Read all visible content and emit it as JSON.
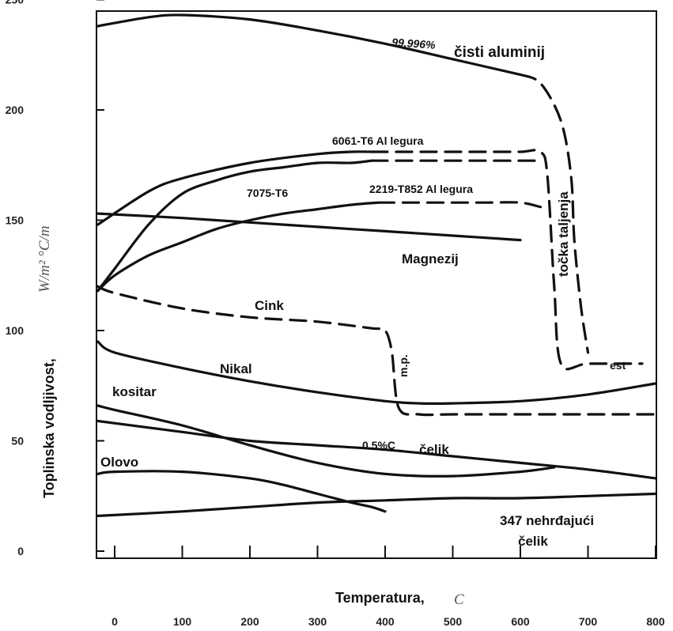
{
  "chart_data": {
    "type": "line",
    "xlabel": "Temperatura,",
    "xunit": "C",
    "ylabel": "Toplinska vodljivost,",
    "yunit": "W/m² °C/m",
    "xticks": [
      0,
      100,
      200,
      300,
      400,
      500,
      600,
      700,
      800
    ],
    "yticks": [
      0,
      50,
      100,
      150,
      200,
      250
    ],
    "xlim": [
      -25,
      810
    ],
    "ylim": [
      -5,
      255
    ],
    "grid": false,
    "series": [
      {
        "name": "99.996% čisti aluminij",
        "style": "solid",
        "x": [
          -25,
          50,
          100,
          200,
          300,
          400,
          500,
          600
        ],
        "y": [
          238,
          242,
          243,
          241,
          236,
          230,
          223,
          216
        ]
      },
      {
        "name": "99.996% čisti aluminij",
        "style": "dashed",
        "x": [
          600,
          630,
          660,
          675,
          680,
          690,
          700
        ],
        "y": [
          216,
          212,
          195,
          170,
          140,
          110,
          90
        ]
      },
      {
        "name": "6061-T6 Al legura",
        "style": "solid",
        "x": [
          -25,
          50,
          100,
          200,
          300,
          350,
          380
        ],
        "y": [
          148,
          163,
          169,
          176,
          180,
          181,
          181
        ]
      },
      {
        "name": "6061-T6 Al legura",
        "style": "dashed",
        "x": [
          380,
          450,
          500,
          550,
          600,
          630,
          640,
          650,
          660,
          700,
          780
        ],
        "y": [
          181,
          181,
          181,
          181,
          181,
          181,
          170,
          120,
          85,
          85,
          85
        ]
      },
      {
        "name": "7075-T6",
        "style": "solid",
        "x": [
          -25,
          0,
          50,
          100,
          150,
          200,
          250,
          300,
          350,
          380
        ],
        "y": [
          118,
          128,
          148,
          162,
          168,
          172,
          174,
          176,
          176,
          177
        ]
      },
      {
        "name": "7075-T6",
        "style": "dashed",
        "x": [
          380,
          450,
          500,
          550,
          600,
          630
        ],
        "y": [
          177,
          177,
          177,
          177,
          177,
          177
        ]
      },
      {
        "name": "2219-T852 Al legura",
        "style": "solid",
        "x": [
          -25,
          0,
          50,
          100,
          150,
          200,
          250,
          300,
          350,
          390
        ],
        "y": [
          118,
          125,
          134,
          140,
          146,
          150,
          153,
          155,
          157,
          158
        ]
      },
      {
        "name": "2219-T852 Al legura",
        "style": "dashed",
        "x": [
          390,
          450,
          500,
          550,
          600,
          630
        ],
        "y": [
          158,
          158,
          158,
          158,
          158,
          156
        ]
      },
      {
        "name": "Magnezij",
        "style": "solid",
        "x": [
          -25,
          100,
          200,
          300,
          400,
          500,
          600
        ],
        "y": [
          153,
          151,
          149,
          147,
          145,
          143,
          141
        ]
      },
      {
        "name": "Cink",
        "style": "dashed",
        "x": [
          -25,
          0,
          100,
          200,
          300,
          380,
          400,
          410,
          420,
          450,
          500,
          600,
          700,
          800
        ],
        "y": [
          120,
          117,
          110,
          106,
          104,
          101,
          100,
          90,
          65,
          62,
          62,
          62,
          62,
          62
        ]
      },
      {
        "name": "Nikal",
        "style": "solid",
        "x": [
          -25,
          0,
          100,
          200,
          300,
          400,
          450,
          500,
          600,
          700,
          800
        ],
        "y": [
          95,
          90,
          83,
          77,
          72,
          68,
          67,
          67,
          68,
          71,
          76
        ]
      },
      {
        "name": "kositar",
        "style": "solid",
        "x": [
          -25,
          0,
          100,
          200,
          300,
          400,
          500,
          600,
          650
        ],
        "y": [
          66,
          64,
          57,
          48,
          40,
          35,
          34,
          36,
          38
        ]
      },
      {
        "name": "0.5%C čelik",
        "style": "solid",
        "x": [
          -25,
          100,
          200,
          300,
          400,
          500,
          600,
          700,
          800
        ],
        "y": [
          59,
          54,
          50,
          48,
          46,
          43,
          40,
          37,
          33
        ]
      },
      {
        "name": "Olovo",
        "style": "solid",
        "x": [
          -25,
          0,
          100,
          200,
          250,
          300,
          350,
          380,
          400
        ],
        "y": [
          35,
          36,
          36,
          33,
          30,
          26,
          22,
          20,
          18
        ]
      },
      {
        "name": "347 nehrđajući čelik",
        "style": "solid",
        "x": [
          -25,
          100,
          200,
          300,
          400,
          500,
          600,
          700,
          800
        ],
        "y": [
          16,
          18,
          20,
          22,
          23,
          24,
          24,
          25,
          26
        ]
      }
    ],
    "annotations": {
      "pure_al_percent": "99.996%",
      "pure_al_name": "čisti aluminij",
      "al6061": "6061-T6 Al legura",
      "al7075": "7075-T6",
      "al2219": "2219-T852 Al legura",
      "magnezij": "Magnezij",
      "tocka": "točka taljenja",
      "cink": "Cink",
      "mp": "m.p.",
      "est": "est",
      "nikal": "Nikal",
      "kositar": "kositar",
      "celik_c": "0.5%C",
      "celik": "čelik",
      "olovo": "Olovo",
      "nehrdj1": "347 nehrđajući",
      "nehrdj2": "čelik"
    }
  }
}
